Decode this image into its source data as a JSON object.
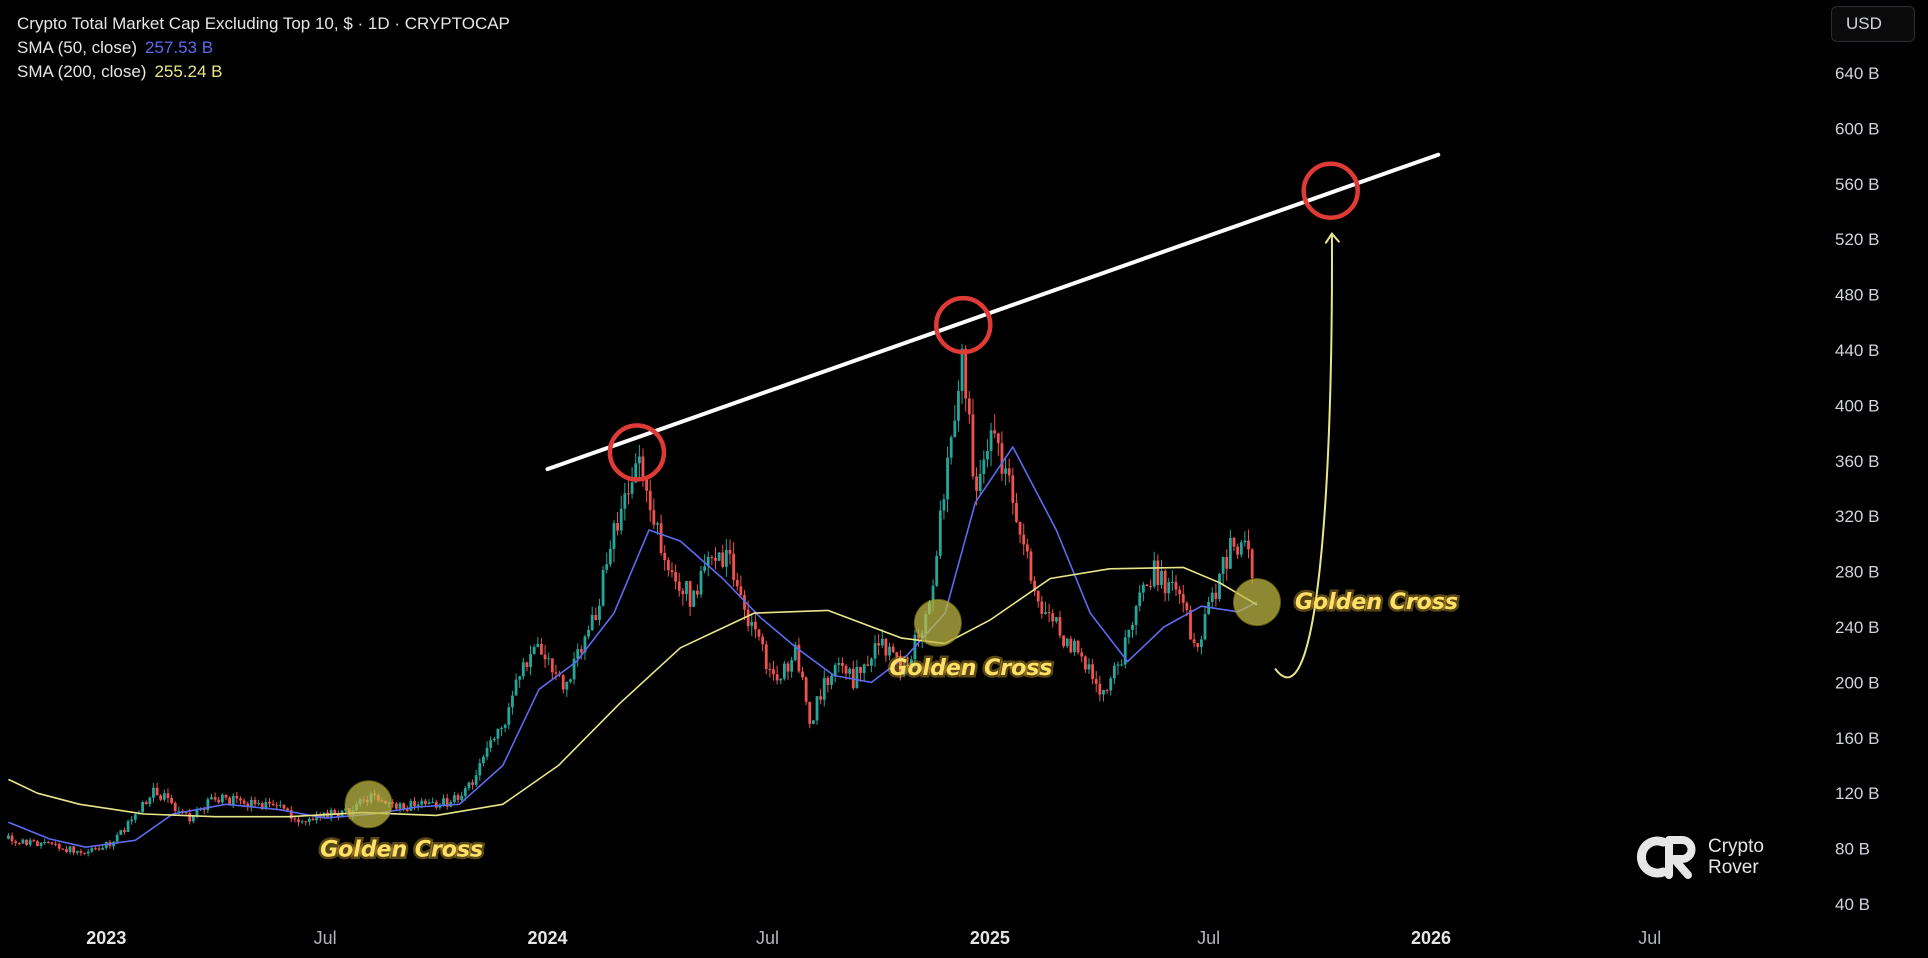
{
  "header": {
    "title": "Crypto Total Market Cap Excluding Top 10, $ · 1D · CRYPTOCAP",
    "sma50_label": "SMA (50, close)",
    "sma50_value": "257.53 B",
    "sma200_label": "SMA (200, close)",
    "sma200_value": "255.24 B",
    "currency": "USD"
  },
  "logo": {
    "line1": "Crypto",
    "line2": "Rover"
  },
  "colors": {
    "background": "#000000",
    "candle_up": "#26a69a",
    "candle_down": "#ef5350",
    "sma50": "#5b6cf0",
    "sma200": "#e9e68a",
    "trendline": "#ffffff",
    "circle": "#e03a36",
    "golden_cross": "#ffe066"
  },
  "chart_data": {
    "type": "line",
    "title": "Crypto Total Market Cap Excluding Top 10, $ · 1D · CRYPTOCAP",
    "y_unit": "B",
    "ylim": [
      40,
      660
    ],
    "xlim": [
      "2022-10-10",
      "2026-10-25"
    ],
    "y_ticks": [
      "640 B",
      "600 B",
      "560 B",
      "520 B",
      "480 B",
      "440 B",
      "400 B",
      "360 B",
      "320 B",
      "280 B",
      "240 B",
      "200 B",
      "160 B",
      "120 B",
      "80 B",
      "40 B"
    ],
    "x_ticks": [
      {
        "label": "2023",
        "date": "2023-01-01",
        "bold": true
      },
      {
        "label": "Jul",
        "date": "2023-07-01",
        "bold": false
      },
      {
        "label": "2024",
        "date": "2024-01-01",
        "bold": true
      },
      {
        "label": "Jul",
        "date": "2024-07-01",
        "bold": false
      },
      {
        "label": "2025",
        "date": "2025-01-01",
        "bold": true
      },
      {
        "label": "Jul",
        "date": "2025-07-01",
        "bold": false
      },
      {
        "label": "2026",
        "date": "2026-01-01",
        "bold": true
      },
      {
        "label": "Jul",
        "date": "2026-07-01",
        "bold": false
      }
    ],
    "series": [
      {
        "name": "Price",
        "kind": "candles",
        "points": [
          [
            "2022-10-12",
            87
          ],
          [
            "2022-11-05",
            84
          ],
          [
            "2022-12-01",
            80
          ],
          [
            "2022-12-25",
            78
          ],
          [
            "2023-01-15",
            92
          ],
          [
            "2023-02-10",
            122
          ],
          [
            "2023-03-10",
            102
          ],
          [
            "2023-04-05",
            118
          ],
          [
            "2023-04-25",
            112
          ],
          [
            "2023-05-25",
            109
          ],
          [
            "2023-06-15",
            98
          ],
          [
            "2023-07-01",
            105
          ],
          [
            "2023-07-20",
            107
          ],
          [
            "2023-08-10",
            119
          ],
          [
            "2023-08-25",
            110
          ],
          [
            "2023-09-15",
            111
          ],
          [
            "2023-10-10",
            113
          ],
          [
            "2023-10-25",
            120
          ],
          [
            "2023-11-10",
            148
          ],
          [
            "2023-11-25",
            170
          ],
          [
            "2023-12-10",
            207
          ],
          [
            "2023-12-25",
            228
          ],
          [
            "2024-01-15",
            200
          ],
          [
            "2024-02-05",
            235
          ],
          [
            "2024-02-20",
            290
          ],
          [
            "2024-03-05",
            340
          ],
          [
            "2024-03-15",
            362
          ],
          [
            "2024-03-25",
            325
          ],
          [
            "2024-04-15",
            270
          ],
          [
            "2024-05-01",
            262
          ],
          [
            "2024-05-20",
            300
          ],
          [
            "2024-06-05",
            280
          ],
          [
            "2024-06-20",
            232
          ],
          [
            "2024-07-10",
            200
          ],
          [
            "2024-07-25",
            222
          ],
          [
            "2024-08-05",
            172
          ],
          [
            "2024-08-25",
            215
          ],
          [
            "2024-09-10",
            200
          ],
          [
            "2024-09-30",
            230
          ],
          [
            "2024-10-20",
            210
          ],
          [
            "2024-11-10",
            244
          ],
          [
            "2024-11-25",
            340
          ],
          [
            "2024-12-08",
            440
          ],
          [
            "2024-12-20",
            345
          ],
          [
            "2025-01-05",
            385
          ],
          [
            "2025-01-20",
            330
          ],
          [
            "2025-02-05",
            270
          ],
          [
            "2025-02-25",
            240
          ],
          [
            "2025-03-15",
            220
          ],
          [
            "2025-04-08",
            190
          ],
          [
            "2025-04-28",
            240
          ],
          [
            "2025-05-15",
            280
          ],
          [
            "2025-06-05",
            265
          ],
          [
            "2025-06-22",
            225
          ],
          [
            "2025-07-15",
            290
          ],
          [
            "2025-07-28",
            305
          ],
          [
            "2025-08-08",
            275
          ]
        ]
      },
      {
        "name": "SMA (50, close)",
        "points": [
          [
            "2022-10-12",
            99
          ],
          [
            "2022-11-15",
            87
          ],
          [
            "2022-12-15",
            81
          ],
          [
            "2023-01-25",
            86
          ],
          [
            "2023-02-25",
            105
          ],
          [
            "2023-04-10",
            112
          ],
          [
            "2023-05-25",
            108
          ],
          [
            "2023-07-01",
            102
          ],
          [
            "2023-08-10",
            105
          ],
          [
            "2023-09-15",
            110
          ],
          [
            "2023-10-20",
            112
          ],
          [
            "2023-11-25",
            140
          ],
          [
            "2023-12-25",
            195
          ],
          [
            "2024-01-25",
            215
          ],
          [
            "2024-02-25",
            250
          ],
          [
            "2024-03-25",
            310
          ],
          [
            "2024-04-20",
            302
          ],
          [
            "2024-05-25",
            275
          ],
          [
            "2024-06-25",
            247
          ],
          [
            "2024-07-25",
            225
          ],
          [
            "2024-08-25",
            205
          ],
          [
            "2024-09-25",
            200
          ],
          [
            "2024-10-25",
            220
          ],
          [
            "2024-11-25",
            250
          ],
          [
            "2024-12-20",
            330
          ],
          [
            "2025-01-20",
            370
          ],
          [
            "2025-02-25",
            310
          ],
          [
            "2025-03-25",
            250
          ],
          [
            "2025-04-25",
            215
          ],
          [
            "2025-05-25",
            240
          ],
          [
            "2025-06-25",
            255
          ],
          [
            "2025-07-25",
            251
          ],
          [
            "2025-08-10",
            258
          ]
        ]
      },
      {
        "name": "SMA (200, close)",
        "points": [
          [
            "2022-10-12",
            130
          ],
          [
            "2022-11-05",
            120
          ],
          [
            "2022-12-10",
            112
          ],
          [
            "2023-02-01",
            105
          ],
          [
            "2023-04-01",
            103
          ],
          [
            "2023-06-01",
            103
          ],
          [
            "2023-08-01",
            106
          ],
          [
            "2023-10-01",
            104
          ],
          [
            "2023-11-25",
            112
          ],
          [
            "2024-01-10",
            140
          ],
          [
            "2024-03-01",
            185
          ],
          [
            "2024-04-20",
            225
          ],
          [
            "2024-06-20",
            250
          ],
          [
            "2024-08-20",
            252
          ],
          [
            "2024-10-20",
            232
          ],
          [
            "2024-11-25",
            228
          ],
          [
            "2025-01-01",
            245
          ],
          [
            "2025-02-20",
            275
          ],
          [
            "2025-04-10",
            282
          ],
          [
            "2025-06-10",
            283
          ],
          [
            "2025-07-10",
            272
          ],
          [
            "2025-08-10",
            256
          ]
        ]
      }
    ],
    "annotations": {
      "trendline": [
        [
          "2024-01-01",
          354
        ],
        [
          "2026-01-07",
          581
        ]
      ],
      "circles": [
        [
          "2024-03-15",
          366
        ],
        [
          "2024-12-10",
          458
        ],
        [
          "2025-10-10",
          555
        ]
      ],
      "golden_cross": [
        {
          "date": "2023-08-06",
          "value": 112,
          "label": "Golden Cross"
        },
        {
          "date": "2024-11-19",
          "value": 243,
          "label": "Golden Cross"
        },
        {
          "date": "2025-08-10",
          "value": 258,
          "label": "Golden Cross"
        }
      ],
      "projection": [
        [
          "2025-08-25",
          210
        ],
        [
          "2025-09-30",
          203
        ],
        [
          "2025-10-12",
          350
        ],
        [
          "2025-10-11",
          524
        ]
      ]
    }
  }
}
